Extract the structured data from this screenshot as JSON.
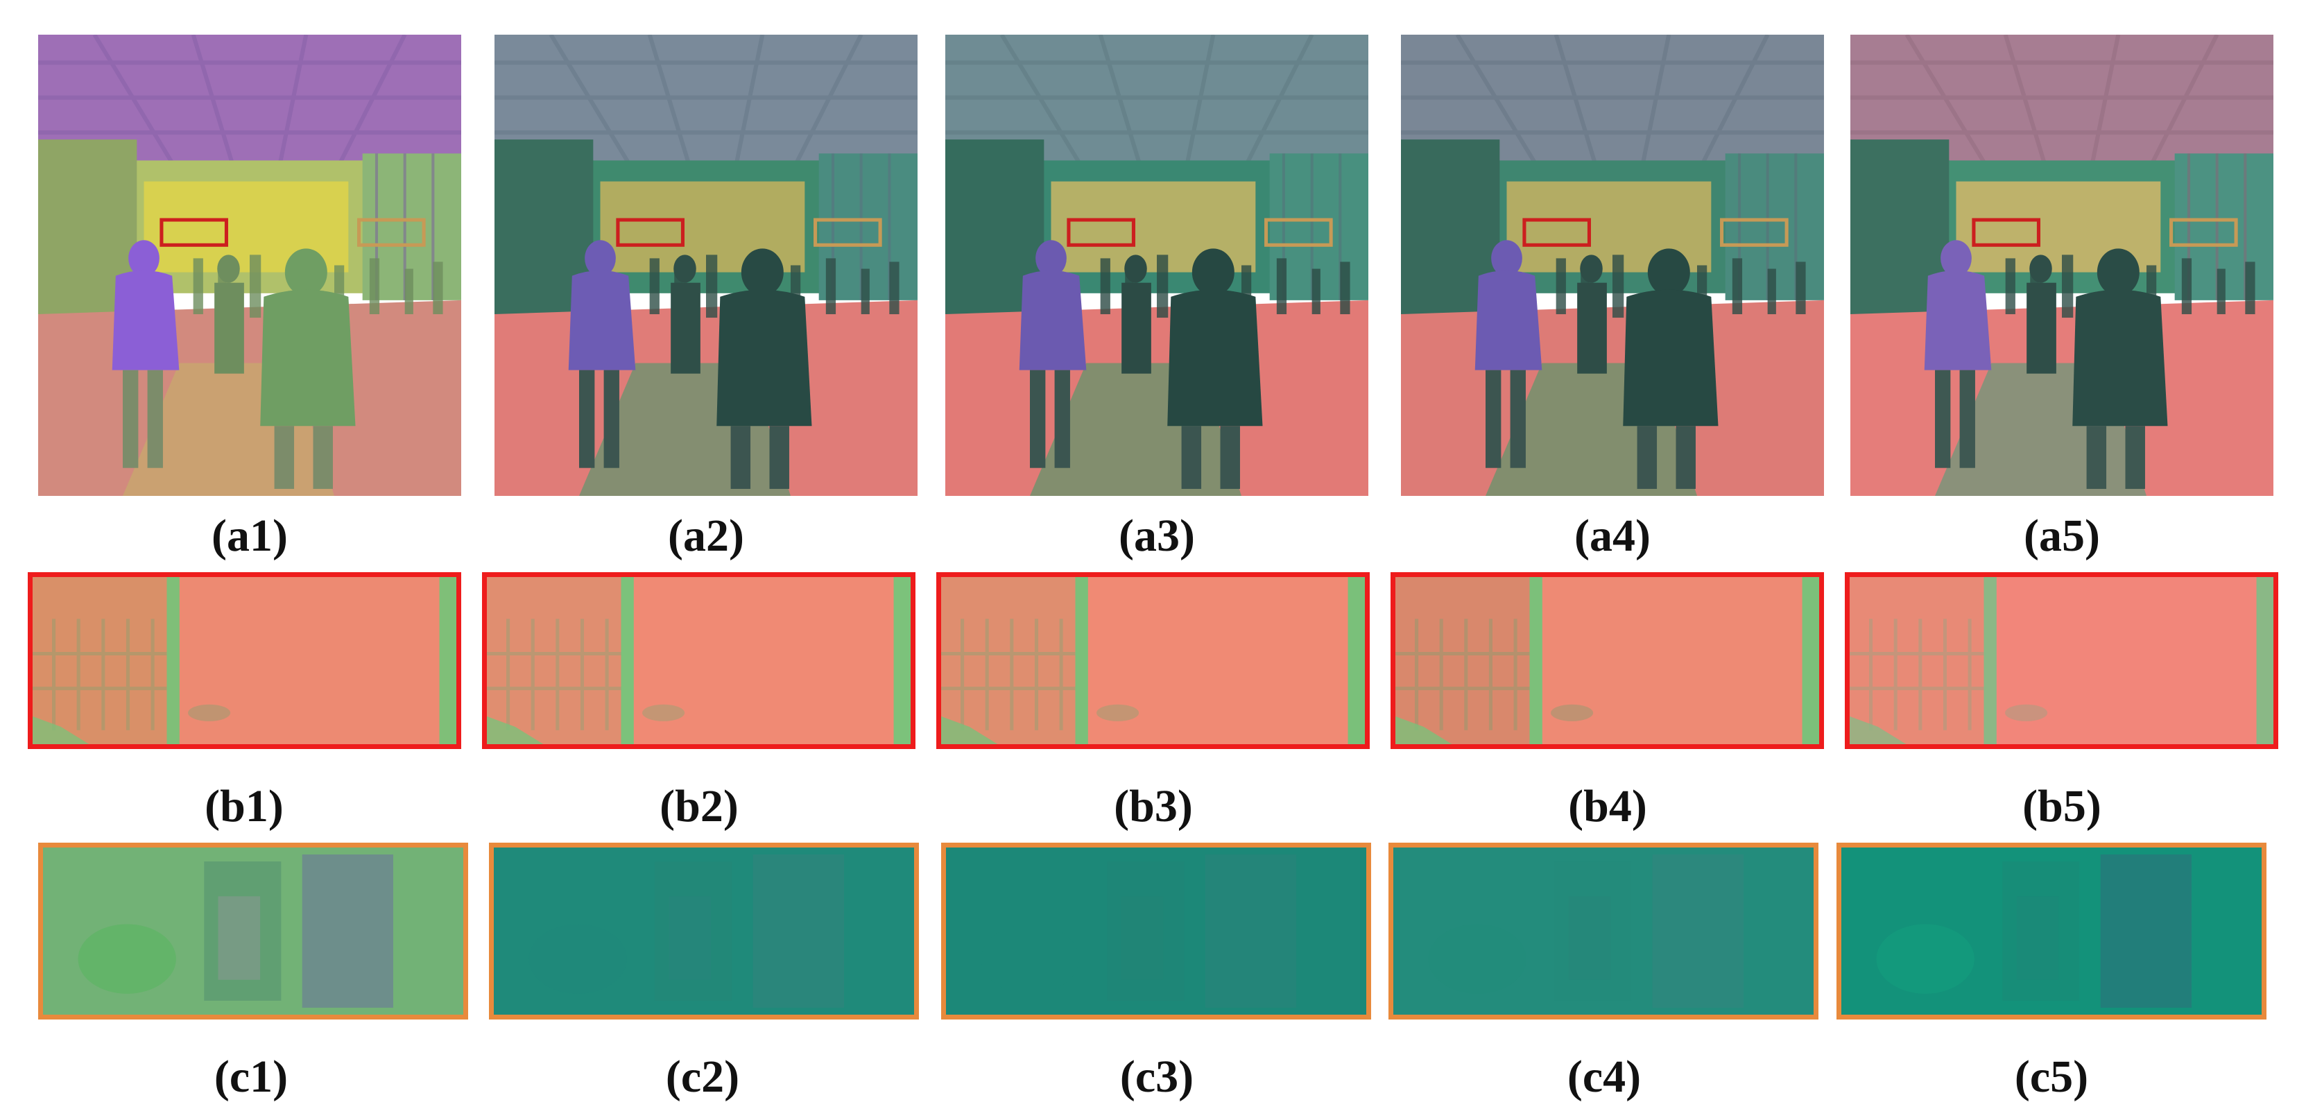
{
  "figure": {
    "row_a": {
      "labels": [
        {
          "letter": "a",
          "num": "1"
        },
        {
          "letter": "a",
          "num": "2"
        },
        {
          "letter": "a",
          "num": "3"
        },
        {
          "letter": "a",
          "num": "4"
        },
        {
          "letter": "a",
          "num": "5"
        }
      ],
      "frame_color": "#dcdcdc",
      "roi_red_color": "#cc1f1f",
      "roi_orange_color": "#c79a56"
    },
    "row_b": {
      "labels": [
        {
          "letter": "b",
          "num": "1"
        },
        {
          "letter": "b",
          "num": "2"
        },
        {
          "letter": "b",
          "num": "3"
        },
        {
          "letter": "b",
          "num": "4"
        },
        {
          "letter": "b",
          "num": "5"
        }
      ],
      "border_color": "#ee1c1c"
    },
    "row_c": {
      "labels": [
        {
          "letter": "c",
          "num": "1"
        },
        {
          "letter": "c",
          "num": "2"
        },
        {
          "letter": "c",
          "num": "3"
        },
        {
          "letter": "c",
          "num": "4"
        },
        {
          "letter": "c",
          "num": "5"
        }
      ],
      "border_color": "#e88a3c"
    }
  }
}
